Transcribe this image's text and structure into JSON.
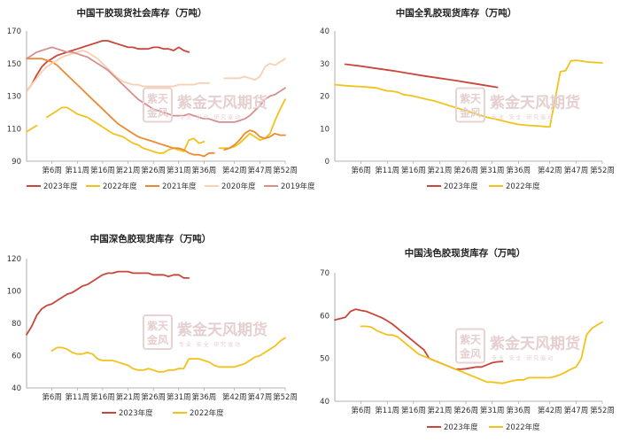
{
  "watermark": {
    "text": "紫金天风期货",
    "subtext": "专 业 · 安 全 · 研 究 驱 动",
    "seal": [
      "紫天",
      "金风"
    ]
  },
  "colors": {
    "2023": "#c8463a",
    "2022": "#f2c21a",
    "2021": "#ec8a32",
    "2020": "#f7d0b2",
    "2019": "#d98e8e"
  },
  "chart_data": [
    {
      "type": "line",
      "title": "中国干胶现货社会库存（万吨）",
      "ylim": [
        90,
        170
      ],
      "yticks": [
        90,
        110,
        130,
        150,
        170
      ],
      "xlim": [
        1,
        52
      ],
      "xticks": [
        "第6周",
        "第11周",
        "第16周",
        "第21周",
        "第26周",
        "第31周",
        "第36周",
        "第42周",
        "第47周",
        "第52周"
      ],
      "xtick_weeks": [
        6,
        11,
        16,
        21,
        26,
        31,
        36,
        42,
        47,
        52
      ],
      "series": [
        {
          "name": "2023年度",
          "color": "#c8463a",
          "x": [
            1,
            2,
            3,
            4,
            5,
            6,
            7,
            8,
            9,
            10,
            11,
            12,
            13,
            14,
            15,
            16,
            17,
            18,
            19,
            20,
            21,
            22,
            23,
            24,
            25,
            26,
            27,
            28,
            29,
            30,
            31,
            32,
            33
          ],
          "values": [
            133,
            137,
            143,
            148,
            151,
            153,
            155,
            156,
            157,
            158,
            159,
            160,
            161,
            162,
            163,
            164,
            164,
            163,
            162,
            161,
            160,
            160,
            159,
            159,
            159,
            160,
            160,
            159,
            159,
            158,
            160,
            158,
            157
          ]
        },
        {
          "name": "2022年度",
          "color": "#f2c21a",
          "x": [
            1,
            2,
            3,
            null,
            5,
            6,
            7,
            8,
            9,
            10,
            11,
            12,
            13,
            14,
            15,
            16,
            17,
            18,
            19,
            20,
            21,
            22,
            23,
            24,
            25,
            26,
            27,
            28,
            29,
            30,
            31,
            32,
            33,
            34,
            35,
            36,
            37,
            38,
            39,
            40,
            41,
            42,
            43,
            44,
            45,
            46,
            47,
            48,
            49,
            50,
            51,
            52
          ],
          "values": [
            108,
            110,
            112,
            null,
            117,
            119,
            121,
            123,
            123,
            121,
            119,
            118,
            117,
            115,
            113,
            111,
            109,
            107,
            106,
            105,
            103,
            101,
            100,
            98,
            97,
            96,
            95,
            95,
            97,
            98,
            97,
            96,
            103,
            104,
            101,
            102,
            null,
            null,
            98,
            98,
            98,
            99,
            101,
            104,
            107,
            105,
            103,
            104,
            107,
            115,
            122,
            128
          ]
        },
        {
          "name": "2021年度",
          "color": "#ec8a32",
          "x": [
            1,
            2,
            3,
            4,
            5,
            6,
            7,
            8,
            9,
            10,
            11,
            12,
            13,
            14,
            15,
            16,
            17,
            18,
            19,
            20,
            21,
            22,
            23,
            24,
            25,
            26,
            27,
            28,
            29,
            30,
            31,
            32,
            33,
            34,
            35,
            36,
            37,
            38,
            39,
            40,
            41,
            42,
            43,
            44,
            45,
            46,
            47,
            48,
            49,
            50,
            51,
            52
          ],
          "values": [
            153,
            153,
            153,
            153,
            152,
            151,
            149,
            146,
            143,
            140,
            137,
            134,
            131,
            128,
            125,
            122,
            119,
            116,
            113,
            111,
            109,
            107,
            105,
            104,
            103,
            102,
            101,
            100,
            99,
            98,
            98,
            97,
            95,
            94,
            94,
            93,
            95,
            95,
            null,
            97,
            98,
            100,
            103,
            107,
            109,
            108,
            105,
            104,
            105,
            107,
            106,
            106
          ]
        },
        {
          "name": "2020年度",
          "color": "#f7d0b2",
          "x": [
            1,
            2,
            3,
            4,
            5,
            6,
            7,
            8,
            9,
            10,
            11,
            12,
            13,
            14,
            15,
            16,
            17,
            18,
            19,
            20,
            21,
            22,
            23,
            24,
            25,
            26,
            27,
            28,
            29,
            30,
            31,
            32,
            33,
            34,
            35,
            36,
            37,
            38,
            39,
            40,
            41,
            42,
            43,
            44,
            45,
            46,
            47,
            48,
            49,
            50,
            51,
            52
          ],
          "values": [
            133,
            137,
            141,
            145,
            148,
            150,
            152,
            154,
            155,
            156,
            157,
            158,
            157,
            155,
            153,
            150,
            147,
            144,
            141,
            139,
            138,
            137,
            137,
            136,
            136,
            136,
            136,
            136,
            136,
            136,
            137,
            137,
            137,
            137,
            138,
            138,
            138,
            null,
            null,
            141,
            141,
            141,
            141,
            142,
            141,
            140,
            142,
            148,
            150,
            149,
            151,
            153
          ]
        },
        {
          "name": "2019年度",
          "color": "#d98e8e",
          "x": [
            1,
            2,
            3,
            4,
            5,
            6,
            7,
            8,
            9,
            10,
            11,
            12,
            13,
            14,
            15,
            16,
            17,
            18,
            19,
            20,
            21,
            22,
            23,
            24,
            25,
            26,
            27,
            28,
            29,
            30,
            31,
            32,
            33,
            34,
            35,
            36,
            37,
            38,
            39,
            40,
            41,
            42,
            43,
            44,
            45,
            46,
            47,
            48,
            49,
            50,
            51,
            52
          ],
          "values": [
            153,
            155,
            157,
            158,
            159,
            160,
            159,
            158,
            157,
            157,
            156,
            155,
            154,
            152,
            150,
            148,
            146,
            143,
            140,
            137,
            134,
            131,
            128,
            126,
            124,
            122,
            121,
            120,
            119,
            118,
            118,
            118,
            119,
            118,
            117,
            116,
            116,
            115,
            114,
            114,
            114,
            114,
            115,
            116,
            118,
            121,
            124,
            128,
            130,
            131,
            133,
            135
          ]
        }
      ]
    },
    {
      "type": "line",
      "title": "中国全乳胶现货库存（万吨）",
      "ylim": [
        0,
        40
      ],
      "yticks": [
        0,
        10,
        20,
        30,
        40
      ],
      "xlim": [
        1,
        52
      ],
      "xticks": [
        "第6周",
        "第11周",
        "第16周",
        "第21周",
        "第26周",
        "第31周",
        "第36周",
        "第42周",
        "第47周",
        "第52周"
      ],
      "xtick_weeks": [
        6,
        11,
        16,
        21,
        26,
        31,
        36,
        42,
        47,
        52
      ],
      "series": [
        {
          "name": "2023年度",
          "color": "#c8463a",
          "x": [
            3,
            6,
            9,
            12,
            15,
            18,
            21,
            24,
            27,
            30,
            32
          ],
          "values": [
            29.8,
            29.2,
            28.5,
            27.8,
            27.0,
            26.2,
            25.5,
            24.8,
            24.0,
            23.2,
            22.7
          ]
        },
        {
          "name": "2022年度",
          "color": "#f2c21a",
          "x": [
            1,
            3,
            5,
            7,
            9,
            10,
            11,
            12,
            13,
            14,
            16,
            18,
            20,
            22,
            24,
            26,
            28,
            30,
            32,
            34,
            36,
            38,
            40,
            42,
            44,
            45,
            46,
            47,
            48,
            49,
            50,
            51,
            52
          ],
          "values": [
            23.5,
            23.2,
            23.0,
            22.8,
            22.5,
            22.0,
            21.6,
            21.5,
            21.2,
            20.5,
            20.0,
            19.2,
            18.5,
            17.5,
            16.5,
            15.5,
            14.5,
            13.5,
            12.8,
            12.0,
            11.3,
            11.0,
            10.8,
            10.5,
            27.5,
            27.8,
            30.8,
            31.0,
            30.8,
            30.5,
            30.4,
            30.3,
            30.2
          ]
        }
      ]
    },
    {
      "type": "line",
      "title": "中国深色胶现货库存（万吨）",
      "ylim": [
        40,
        120
      ],
      "yticks": [
        40,
        60,
        80,
        100,
        120
      ],
      "xlim": [
        1,
        52
      ],
      "xticks": [
        "第6周",
        "第11周",
        "第16周",
        "第21周",
        "第26周",
        "第31周",
        "第36周",
        "第42周",
        "第47周",
        "第52周"
      ],
      "xtick_weeks": [
        6,
        11,
        16,
        21,
        26,
        31,
        36,
        42,
        47,
        52
      ],
      "series": [
        {
          "name": "2023年度",
          "color": "#c8463a",
          "x": [
            1,
            2,
            3,
            4,
            5,
            6,
            7,
            8,
            9,
            10,
            11,
            12,
            13,
            14,
            15,
            16,
            17,
            18,
            19,
            20,
            21,
            22,
            23,
            24,
            25,
            26,
            27,
            28,
            29,
            30,
            31,
            32,
            33
          ],
          "values": [
            73,
            78,
            85,
            89,
            91,
            92,
            94,
            96,
            98,
            99,
            101,
            103,
            104,
            106,
            108,
            110,
            111,
            111,
            112,
            112,
            112,
            111,
            111,
            111,
            111,
            110,
            110,
            110,
            109,
            110,
            110,
            108,
            108
          ]
        },
        {
          "name": "2022年度",
          "color": "#f2c21a",
          "x": [
            6,
            7,
            8,
            9,
            10,
            11,
            12,
            13,
            14,
            15,
            16,
            17,
            18,
            19,
            20,
            21,
            22,
            23,
            24,
            25,
            26,
            27,
            28,
            29,
            30,
            31,
            32,
            33,
            34,
            35,
            36,
            37,
            38,
            39,
            40,
            41,
            42,
            43,
            44,
            45,
            46,
            47,
            48,
            49,
            50,
            51,
            52
          ],
          "values": [
            63,
            65,
            65,
            64,
            62,
            61,
            61,
            62,
            61,
            58,
            57,
            57,
            57,
            56,
            55,
            54,
            52,
            51,
            51,
            52,
            51,
            50,
            50,
            51,
            51,
            52,
            52,
            58,
            58,
            58,
            57,
            56,
            54,
            53,
            53,
            53,
            53,
            54,
            55,
            57,
            59,
            60,
            62,
            64,
            66,
            69,
            71
          ]
        }
      ]
    },
    {
      "type": "line",
      "title": "中国浅色胶现货库存（万吨）",
      "ylim": [
        40,
        70
      ],
      "yticks": [
        40,
        50,
        60,
        70
      ],
      "xlim": [
        1,
        52
      ],
      "xticks": [
        "第6周",
        "第11周",
        "第16周",
        "第21周",
        "第26周",
        "第31周",
        "第36周",
        "第42周",
        "第47周",
        "第52周"
      ],
      "xtick_weeks": [
        6,
        11,
        16,
        21,
        26,
        31,
        36,
        42,
        47,
        52
      ],
      "series": [
        {
          "name": "2023年度",
          "color": "#c8463a",
          "x": [
            1,
            2,
            3,
            4,
            5,
            6,
            7,
            8,
            9,
            10,
            11,
            12,
            13,
            14,
            15,
            16,
            17,
            18,
            19,
            20,
            21,
            22,
            23,
            24,
            25,
            26,
            27,
            28,
            29,
            30,
            31,
            32,
            33
          ],
          "values": [
            59,
            59.3,
            59.6,
            61,
            61.5,
            61.2,
            61,
            60.5,
            60,
            59.5,
            58.8,
            58,
            57,
            56,
            55,
            54,
            53,
            52,
            50,
            49.5,
            49,
            48.5,
            48,
            47.5,
            47.5,
            47.6,
            47.8,
            48,
            48,
            48.5,
            49,
            49.2,
            49.3
          ]
        },
        {
          "name": "2022年度",
          "color": "#f2c21a",
          "x": [
            6,
            7,
            8,
            9,
            10,
            11,
            12,
            13,
            14,
            15,
            16,
            17,
            18,
            19,
            20,
            21,
            22,
            23,
            24,
            25,
            26,
            27,
            28,
            29,
            30,
            31,
            32,
            33,
            34,
            35,
            36,
            37,
            38,
            39,
            40,
            41,
            42,
            43,
            44,
            45,
            46,
            47,
            48,
            49,
            50,
            51,
            52
          ],
          "values": [
            57.5,
            57.5,
            57.3,
            56.5,
            56,
            55.5,
            55.5,
            55,
            54,
            53,
            52,
            51,
            50.5,
            50,
            49.5,
            49,
            48.5,
            48,
            47.5,
            47,
            46.5,
            46,
            45.5,
            45,
            44.5,
            44.5,
            44.3,
            44.2,
            44.5,
            44.8,
            45,
            45,
            45.5,
            45.5,
            45.5,
            45.5,
            45.5,
            45.8,
            46.2,
            46.8,
            47.5,
            48,
            50,
            55.5,
            57,
            57.8,
            58.5
          ]
        }
      ]
    }
  ]
}
